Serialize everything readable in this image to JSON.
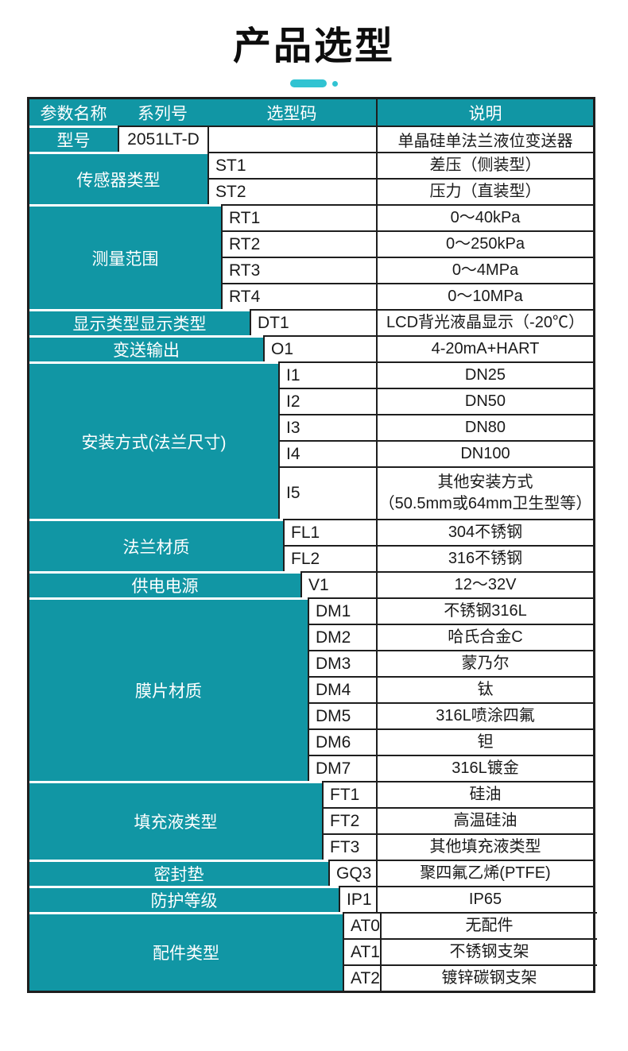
{
  "title": "产品选型",
  "colors": {
    "teal": "#1196a4",
    "accent": "#31c3d2",
    "line": "#1e1e1e",
    "text": "#1a1a1a"
  },
  "table": {
    "headers": {
      "param": "参数名称",
      "series": "系列号",
      "code": "选型码",
      "desc": "说明"
    },
    "model_row": {
      "label": "型号",
      "series": "2051LT-D",
      "code": "",
      "desc": "单晶硅单法兰液位变送器"
    },
    "groups": [
      {
        "label": "传感器类型",
        "rows": [
          {
            "code": "ST1",
            "desc": "差压（侧装型）"
          },
          {
            "code": "ST2",
            "desc": "压力（直装型）"
          }
        ]
      },
      {
        "label": "测量范围",
        "rows": [
          {
            "code": "RT1",
            "desc": "0～40kPa"
          },
          {
            "code": "RT2",
            "desc": "0～250kPa"
          },
          {
            "code": "RT3",
            "desc": "0～4MPa"
          },
          {
            "code": "RT4",
            "desc": "0～10MPa"
          }
        ]
      },
      {
        "label": "显示类型显示类型",
        "rows": [
          {
            "code": "DT1",
            "desc": "LCD背光液晶显示（-20℃）"
          }
        ]
      },
      {
        "label": "变送输出",
        "rows": [
          {
            "code": "O1",
            "desc": "4-20mA+HART"
          }
        ]
      },
      {
        "label": "安装方式(法兰尺寸)",
        "rows": [
          {
            "code": "I1",
            "desc": "DN25"
          },
          {
            "code": "I2",
            "desc": "DN50"
          },
          {
            "code": "I3",
            "desc": "DN80"
          },
          {
            "code": "I4",
            "desc": "DN100"
          },
          {
            "code": "I5",
            "desc": "其他安装方式\n（50.5mm或64mm卫生型等）",
            "tall": true
          }
        ]
      },
      {
        "label": "法兰材质",
        "rows": [
          {
            "code": "FL1",
            "desc": "304不锈钢"
          },
          {
            "code": "FL2",
            "desc": "316不锈钢"
          }
        ]
      },
      {
        "label": "供电电源",
        "rows": [
          {
            "code": "V1",
            "desc": "12～32V"
          }
        ]
      },
      {
        "label": "膜片材质",
        "rows": [
          {
            "code": "DM1",
            "desc": "不锈钢316L"
          },
          {
            "code": "DM2",
            "desc": "哈氏合金C"
          },
          {
            "code": "DM3",
            "desc": "蒙乃尔"
          },
          {
            "code": "DM4",
            "desc": "钛"
          },
          {
            "code": "DM5",
            "desc": "316L喷涂四氟"
          },
          {
            "code": "DM6",
            "desc": "钽"
          },
          {
            "code": "DM7",
            "desc": "316L镀金"
          }
        ]
      },
      {
        "label": "填充液类型",
        "rows": [
          {
            "code": "FT1",
            "desc": "硅油"
          },
          {
            "code": "FT2",
            "desc": "高温硅油"
          },
          {
            "code": "FT3",
            "desc": "其他填充液类型"
          }
        ]
      },
      {
        "label": "密封垫",
        "rows": [
          {
            "code": "GQ3",
            "desc": "聚四氟乙烯(PTFE)"
          }
        ]
      },
      {
        "label": "防护等级",
        "rows": [
          {
            "code": "IP1",
            "desc": "IP65"
          }
        ]
      },
      {
        "label": "配件类型",
        "rows": [
          {
            "code": "AT0",
            "desc": "无配件"
          },
          {
            "code": "AT1",
            "desc": "不锈钢支架"
          },
          {
            "code": "AT2",
            "desc": "镀锌碳钢支架"
          }
        ]
      }
    ]
  }
}
